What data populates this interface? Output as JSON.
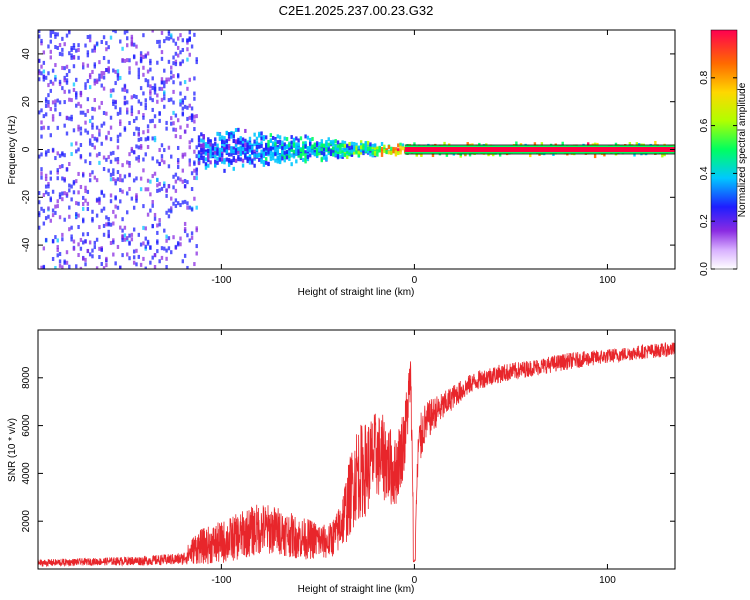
{
  "page": {
    "title": "C2E1.2025.237.00.23.G32"
  },
  "chart_data": [
    {
      "type": "heatmap",
      "title": "C2E1.2025.237.00.23.G32",
      "xlabel": "Height of straight line (km)",
      "ylabel": "Frequency (Hz)",
      "xlim": [
        -195,
        135
      ],
      "ylim": [
        -50,
        50
      ],
      "xticks": [
        -100,
        0,
        100
      ],
      "yticks": [
        -40,
        -20,
        0,
        20,
        40
      ],
      "xtick_labels": [
        "-100",
        "0",
        "100"
      ],
      "ytick_labels": [
        "-40",
        "-20",
        "0",
        "20",
        "40"
      ],
      "colorbar": {
        "label": "Normalized spectral amplitude",
        "range": [
          0,
          1
        ],
        "ticks": [
          0.0,
          0.2,
          0.4,
          0.6,
          0.8
        ],
        "tick_labels": [
          "0.0",
          "0.2",
          "0.4",
          "0.6",
          "0.8"
        ],
        "colors": [
          "#ffffff",
          "#8a2be2",
          "#1e1eff",
          "#00c8ff",
          "#00ff60",
          "#b0ff00",
          "#ffd700",
          "#ff6a00",
          "#ff0050"
        ]
      },
      "carrier_band": {
        "description": "strong carrier line near 0 Hz",
        "frequency_hz": 0,
        "x_range": [
          -5,
          135
        ],
        "amplitude": 1.0
      },
      "regions": [
        {
          "name": "noise",
          "x_range": [
            -195,
            -113
          ],
          "freq_spread": 50,
          "amplitude": 0.25
        },
        {
          "name": "transition",
          "x_range": [
            -113,
            -20
          ],
          "freq_spread": 12,
          "amplitude": 0.45
        },
        {
          "name": "signal",
          "x_range": [
            -20,
            135
          ],
          "freq_spread": 3,
          "amplitude": 0.95
        }
      ],
      "color": "#ff0040"
    },
    {
      "type": "line",
      "title": "",
      "xlabel": "Height of straight line (km)",
      "ylabel": "SNR (10 * v/v)",
      "xlim": [
        -195,
        135
      ],
      "ylim": [
        0,
        10000
      ],
      "xticks": [
        -100,
        0,
        100
      ],
      "yticks": [
        2000,
        4000,
        6000,
        8000
      ],
      "xtick_labels": [
        "-100",
        "0",
        "100"
      ],
      "ytick_labels": [
        "2000",
        "4000",
        "6000",
        "8000"
      ],
      "series": [
        {
          "name": "SNR",
          "color": "#e8262b",
          "x": [
            -195,
            -170,
            -140,
            -120,
            -113,
            -100,
            -90,
            -80,
            -70,
            -60,
            -50,
            -45,
            -40,
            -35,
            -30,
            -25,
            -20,
            -15,
            -10,
            -5,
            -2,
            0,
            2,
            5,
            10,
            15,
            20,
            30,
            40,
            60,
            80,
            100,
            120,
            135
          ],
          "y": [
            250,
            300,
            350,
            420,
            900,
            1100,
            1400,
            1700,
            1600,
            1300,
            1200,
            1100,
            1500,
            2600,
            4000,
            4200,
            4800,
            4600,
            4000,
            5500,
            8000,
            300,
            5000,
            6000,
            6500,
            6800,
            7200,
            7800,
            8100,
            8400,
            8700,
            8900,
            9100,
            9200
          ],
          "noise_amplitude": [
            150,
            150,
            200,
            250,
            700,
            900,
            1000,
            1100,
            1000,
            900,
            800,
            700,
            900,
            1500,
            2000,
            2000,
            1800,
            1800,
            1500,
            1500,
            1200,
            0,
            1200,
            900,
            700,
            600,
            500,
            400,
            400,
            350,
            350,
            300,
            300,
            300
          ]
        }
      ]
    }
  ]
}
